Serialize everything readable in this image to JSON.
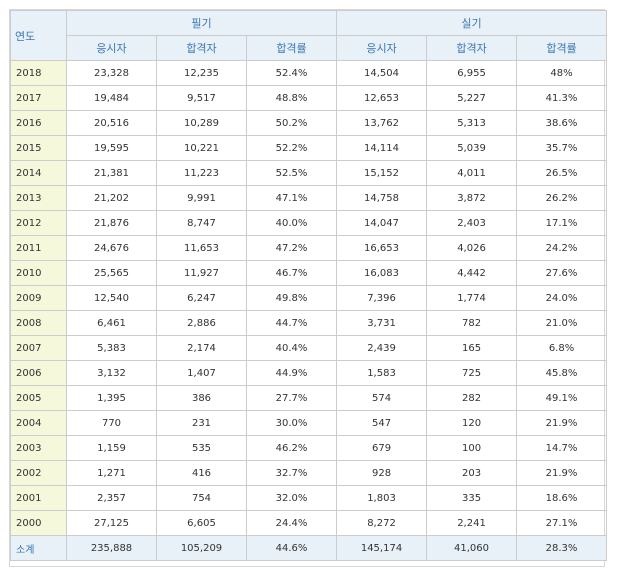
{
  "header": {
    "year_label": "연도",
    "written_label": "필기",
    "practical_label": "실기",
    "columns": [
      "응시자",
      "합격자",
      "합격률",
      "응시자",
      "합격자",
      "합격률"
    ]
  },
  "rows": [
    {
      "year": "2018",
      "w_app": "23,328",
      "w_pass": "12,235",
      "w_rate": "52.4%",
      "p_app": "14,504",
      "p_pass": "6,955",
      "p_rate": "48%"
    },
    {
      "year": "2017",
      "w_app": "19,484",
      "w_pass": "9,517",
      "w_rate": "48.8%",
      "p_app": "12,653",
      "p_pass": "5,227",
      "p_rate": "41.3%"
    },
    {
      "year": "2016",
      "w_app": "20,516",
      "w_pass": "10,289",
      "w_rate": "50.2%",
      "p_app": "13,762",
      "p_pass": "5,313",
      "p_rate": "38.6%"
    },
    {
      "year": "2015",
      "w_app": "19,595",
      "w_pass": "10,221",
      "w_rate": "52.2%",
      "p_app": "14,114",
      "p_pass": "5,039",
      "p_rate": "35.7%"
    },
    {
      "year": "2014",
      "w_app": "21,381",
      "w_pass": "11,223",
      "w_rate": "52.5%",
      "p_app": "15,152",
      "p_pass": "4,011",
      "p_rate": "26.5%"
    },
    {
      "year": "2013",
      "w_app": "21,202",
      "w_pass": "9,991",
      "w_rate": "47.1%",
      "p_app": "14,758",
      "p_pass": "3,872",
      "p_rate": "26.2%"
    },
    {
      "year": "2012",
      "w_app": "21,876",
      "w_pass": "8,747",
      "w_rate": "40.0%",
      "p_app": "14,047",
      "p_pass": "2,403",
      "p_rate": "17.1%"
    },
    {
      "year": "2011",
      "w_app": "24,676",
      "w_pass": "11,653",
      "w_rate": "47.2%",
      "p_app": "16,653",
      "p_pass": "4,026",
      "p_rate": "24.2%"
    },
    {
      "year": "2010",
      "w_app": "25,565",
      "w_pass": "11,927",
      "w_rate": "46.7%",
      "p_app": "16,083",
      "p_pass": "4,442",
      "p_rate": "27.6%"
    },
    {
      "year": "2009",
      "w_app": "12,540",
      "w_pass": "6,247",
      "w_rate": "49.8%",
      "p_app": "7,396",
      "p_pass": "1,774",
      "p_rate": "24.0%"
    },
    {
      "year": "2008",
      "w_app": "6,461",
      "w_pass": "2,886",
      "w_rate": "44.7%",
      "p_app": "3,731",
      "p_pass": "782",
      "p_rate": "21.0%"
    },
    {
      "year": "2007",
      "w_app": "5,383",
      "w_pass": "2,174",
      "w_rate": "40.4%",
      "p_app": "2,439",
      "p_pass": "165",
      "p_rate": "6.8%"
    },
    {
      "year": "2006",
      "w_app": "3,132",
      "w_pass": "1,407",
      "w_rate": "44.9%",
      "p_app": "1,583",
      "p_pass": "725",
      "p_rate": "45.8%"
    },
    {
      "year": "2005",
      "w_app": "1,395",
      "w_pass": "386",
      "w_rate": "27.7%",
      "p_app": "574",
      "p_pass": "282",
      "p_rate": "49.1%"
    },
    {
      "year": "2004",
      "w_app": "770",
      "w_pass": "231",
      "w_rate": "30.0%",
      "p_app": "547",
      "p_pass": "120",
      "p_rate": "21.9%"
    },
    {
      "year": "2003",
      "w_app": "1,159",
      "w_pass": "535",
      "w_rate": "46.2%",
      "p_app": "679",
      "p_pass": "100",
      "p_rate": "14.7%"
    },
    {
      "year": "2002",
      "w_app": "1,271",
      "w_pass": "416",
      "w_rate": "32.7%",
      "p_app": "928",
      "p_pass": "203",
      "p_rate": "21.9%"
    },
    {
      "year": "2001",
      "w_app": "2,357",
      "w_pass": "754",
      "w_rate": "32.0%",
      "p_app": "1,803",
      "p_pass": "335",
      "p_rate": "18.6%"
    },
    {
      "year": "2000",
      "w_app": "27,125",
      "w_pass": "6,605",
      "w_rate": "24.4%",
      "p_app": "8,272",
      "p_pass": "2,241",
      "p_rate": "27.1%"
    }
  ],
  "total": {
    "year": "소계",
    "w_app": "235,888",
    "w_pass": "105,209",
    "w_rate": "44.6%",
    "p_app": "145,174",
    "p_pass": "41,060",
    "p_rate": "28.3%"
  },
  "colors": {
    "header_bg": "#e8f1f8",
    "header_text": "#3c78b0",
    "year_bg": "#f6f8dc",
    "border": "#cccccc"
  }
}
